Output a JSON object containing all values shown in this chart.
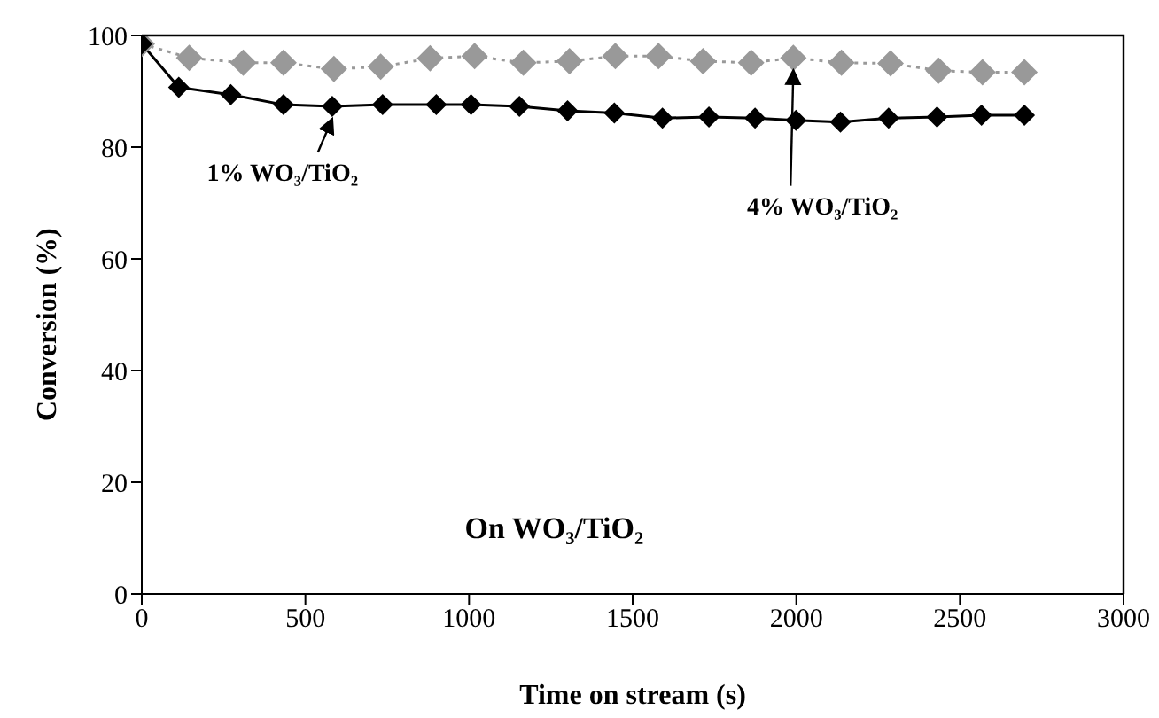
{
  "chart_data": {
    "type": "line",
    "xlabel": "Time on stream (s)",
    "ylabel": "Conversion (%)",
    "annotations": [
      "On WO₃/TiO₂"
    ],
    "xlim": [
      0,
      3000
    ],
    "xticks": [
      0,
      500,
      1000,
      1500,
      2000,
      2500,
      3000
    ],
    "ylim": [
      0,
      100
    ],
    "yticks": [
      0,
      20,
      40,
      60,
      80,
      100
    ],
    "marker": "diamond",
    "series": [
      {
        "name": "1% WO₃/TiO₂",
        "color": "#000000",
        "line_style": "solid",
        "x": [
          0,
          113,
          272,
          433,
          582,
          736,
          900,
          1006,
          1154,
          1301,
          1444,
          1591,
          1733,
          1874,
          1999,
          2135,
          2282,
          2430,
          2566,
          2697
        ],
        "values": [
          98.5,
          90.7,
          89.4,
          87.6,
          87.3,
          87.6,
          87.6,
          87.6,
          87.3,
          86.5,
          86.1,
          85.2,
          85.4,
          85.2,
          84.8,
          84.5,
          85.2,
          85.4,
          85.7,
          85.7
        ]
      },
      {
        "name": "4% WO₃/TiO₂",
        "color": "#999999",
        "line_style": "dotted",
        "x": [
          0,
          145,
          310,
          433,
          587,
          730,
          881,
          1017,
          1166,
          1307,
          1447,
          1579,
          1715,
          1862,
          1991,
          2138,
          2288,
          2435,
          2569,
          2697
        ],
        "values": [
          98.5,
          96.0,
          95.1,
          95.1,
          94.0,
          94.4,
          95.9,
          96.3,
          95.1,
          95.4,
          96.3,
          96.3,
          95.4,
          95.1,
          96.0,
          95.1,
          95.0,
          93.7,
          93.4,
          93.4
        ]
      }
    ]
  }
}
